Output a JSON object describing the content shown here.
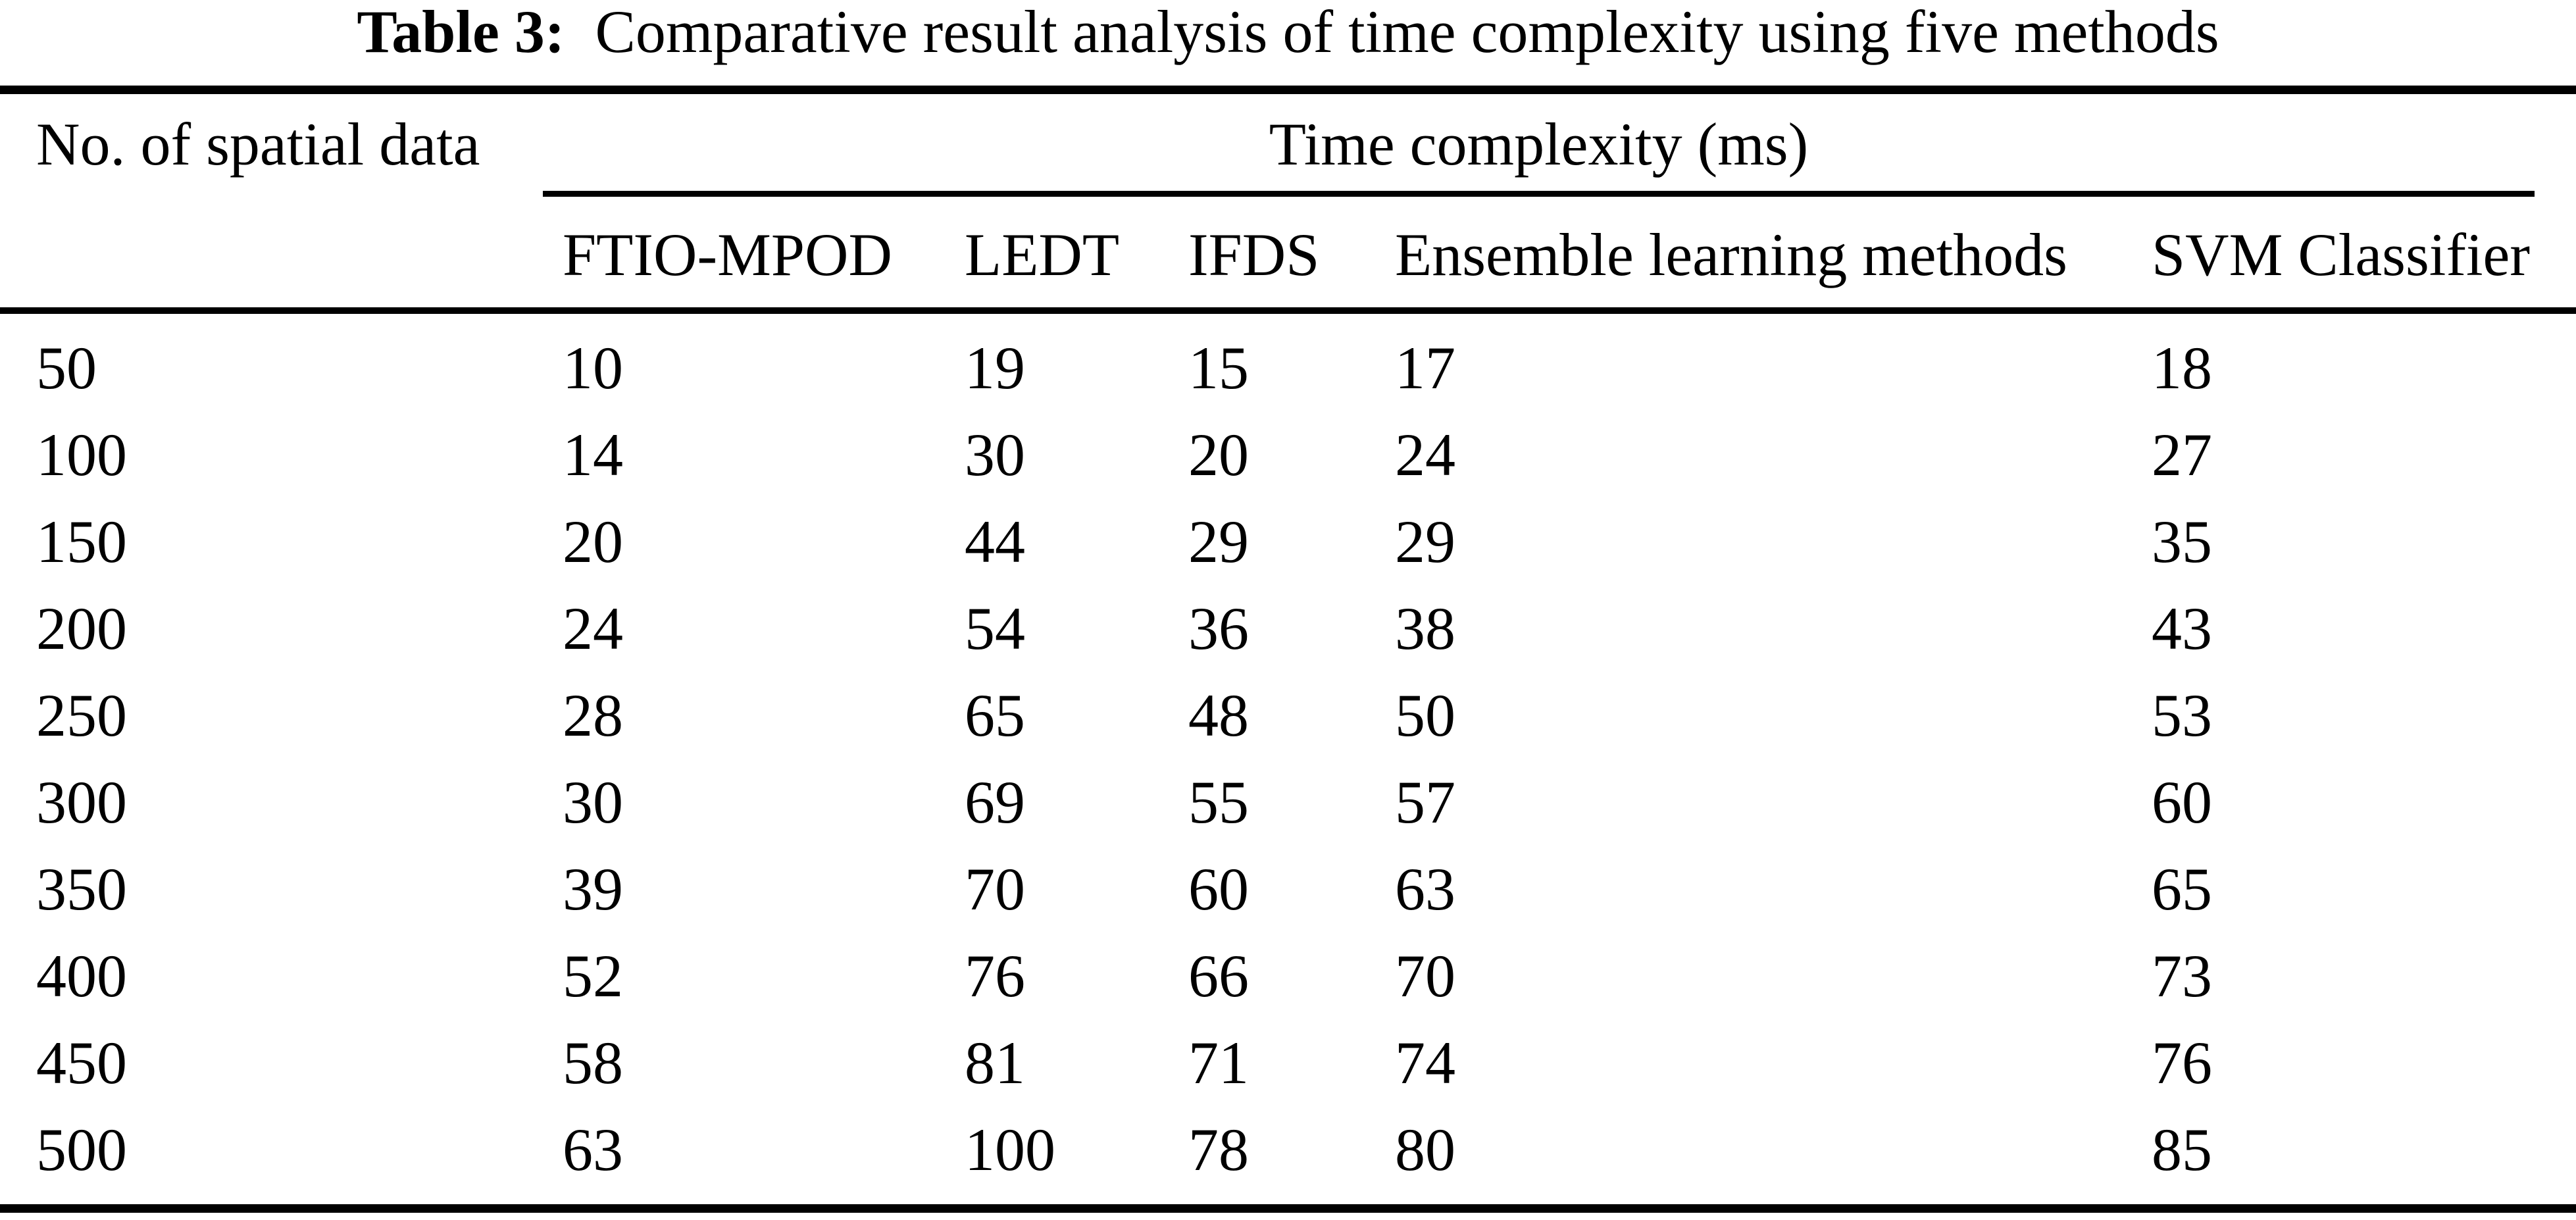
{
  "colors": {
    "text": "#000000",
    "background": "#ffffff",
    "rule": "#000000"
  },
  "caption": {
    "label": "Table 3:",
    "text": "Comparative result analysis of time complexity using five methods"
  },
  "table": {
    "col1_header": "No. of spatial data",
    "group_header": "Time complexity (ms)",
    "method_headers": [
      "FTIO-MPOD",
      "LEDT",
      "IFDS",
      "Ensemble learning methods",
      "SVM Classifier"
    ],
    "rows": [
      {
        "n": "50",
        "values": [
          "10",
          "19",
          "15",
          "17",
          "18"
        ]
      },
      {
        "n": "100",
        "values": [
          "14",
          "30",
          "20",
          "24",
          "27"
        ]
      },
      {
        "n": "150",
        "values": [
          "20",
          "44",
          "29",
          "29",
          "35"
        ]
      },
      {
        "n": "200",
        "values": [
          "24",
          "54",
          "36",
          "38",
          "43"
        ]
      },
      {
        "n": "250",
        "values": [
          "28",
          "65",
          "48",
          "50",
          "53"
        ]
      },
      {
        "n": "300",
        "values": [
          "30",
          "69",
          "55",
          "57",
          "60"
        ]
      },
      {
        "n": "350",
        "values": [
          "39",
          "70",
          "60",
          "63",
          "65"
        ]
      },
      {
        "n": "400",
        "values": [
          "52",
          "76",
          "66",
          "70",
          "73"
        ]
      },
      {
        "n": "450",
        "values": [
          "58",
          "81",
          "71",
          "74",
          "76"
        ]
      },
      {
        "n": "500",
        "values": [
          "63",
          "100",
          "78",
          "80",
          "85"
        ]
      }
    ]
  }
}
